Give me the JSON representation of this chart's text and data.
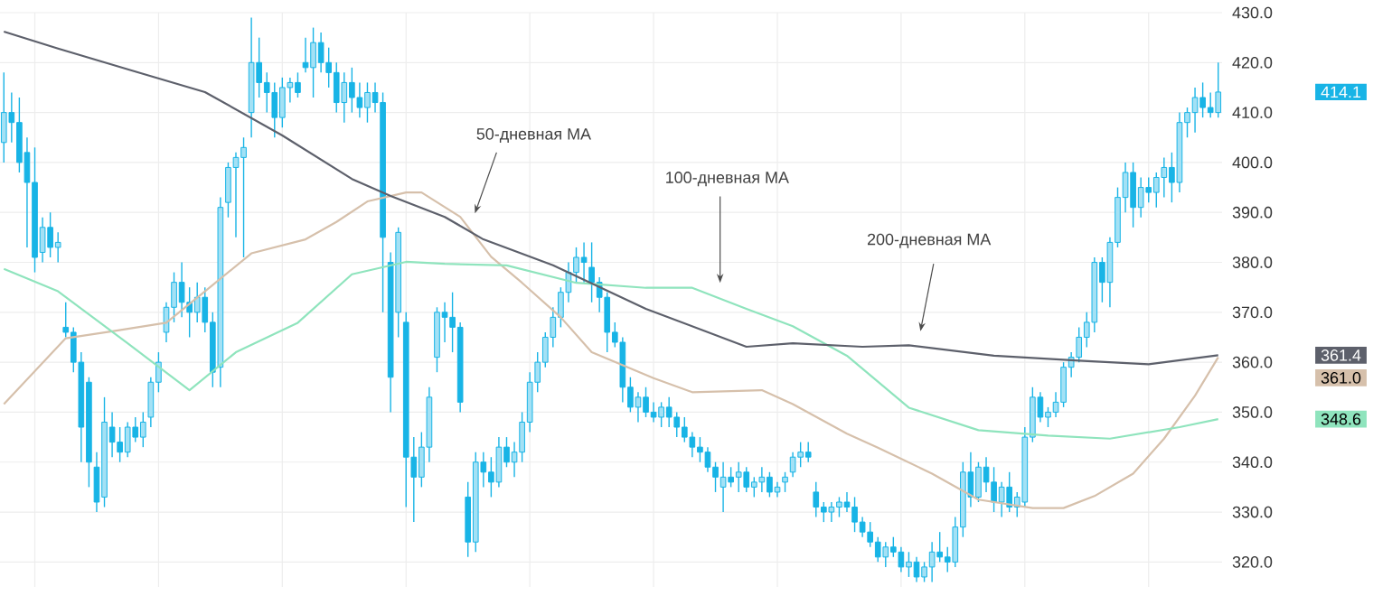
{
  "chart_data": {
    "type": "candlestick",
    "color": "#18b4e6",
    "categories": [
      null,
      null,
      null,
      null,
      null,
      null,
      null,
      null,
      null,
      null,
      null,
      null,
      null,
      null,
      null,
      null,
      null,
      null,
      null,
      null,
      null,
      null,
      null,
      null,
      null,
      null,
      null,
      null,
      null,
      null,
      null,
      null,
      null,
      null,
      null,
      null,
      null,
      null,
      null,
      null,
      null,
      null,
      null,
      null,
      null,
      null,
      null,
      null,
      null,
      null,
      null,
      null,
      null,
      null,
      null,
      null,
      null,
      null,
      null,
      null,
      null,
      null,
      null,
      null,
      null,
      null,
      null,
      null,
      null,
      null,
      null,
      null,
      null,
      null,
      null,
      null,
      null,
      null,
      null,
      null,
      null,
      null,
      null,
      null,
      null,
      null,
      null,
      null,
      null,
      null,
      null,
      null,
      null,
      null,
      null,
      null,
      null,
      null,
      null,
      null,
      null,
      null,
      null,
      null,
      null,
      null,
      null,
      null,
      null,
      null,
      null,
      null,
      null,
      null,
      null,
      null,
      null,
      null,
      null,
      null,
      null,
      null,
      null,
      null,
      null,
      null,
      null,
      null,
      null,
      null,
      null,
      null,
      null,
      null,
      null,
      null,
      null,
      null,
      null,
      null,
      null,
      null,
      null,
      null,
      null,
      null,
      null,
      null,
      null,
      null,
      null,
      null,
      null,
      null,
      null,
      null,
      null,
      null
    ],
    "ohlc": [
      [
        404,
        418,
        400,
        410
      ],
      [
        410,
        414,
        404,
        408
      ],
      [
        408,
        413,
        398,
        400
      ],
      [
        402,
        405,
        383,
        396
      ],
      [
        396,
        403,
        378,
        381
      ],
      [
        382,
        389,
        380,
        387
      ],
      [
        387,
        390,
        381,
        383
      ],
      [
        383,
        386,
        380,
        384
      ],
      [
        367,
        372,
        365,
        366
      ],
      [
        366,
        367,
        358,
        360
      ],
      [
        360,
        362,
        340,
        347
      ],
      [
        356,
        357,
        335,
        340
      ],
      [
        339,
        342,
        330,
        332
      ],
      [
        333,
        353,
        331,
        348
      ],
      [
        347,
        350,
        341,
        344
      ],
      [
        344,
        347,
        340,
        342
      ],
      [
        342,
        348,
        341,
        347
      ],
      [
        347,
        349,
        344,
        345
      ],
      [
        345,
        350,
        343,
        348
      ],
      [
        349,
        357,
        347,
        356
      ],
      [
        356,
        362,
        354,
        360
      ],
      [
        366,
        372,
        364,
        371
      ],
      [
        371,
        378,
        368,
        376
      ],
      [
        376,
        380,
        369,
        372
      ],
      [
        372,
        375,
        365,
        370
      ],
      [
        370,
        376,
        368,
        373
      ],
      [
        373,
        375,
        366,
        368
      ],
      [
        368,
        370,
        355,
        358
      ],
      [
        359,
        393,
        355,
        391
      ],
      [
        392,
        400,
        389,
        399
      ],
      [
        399,
        402,
        385,
        401
      ],
      [
        401,
        405,
        381,
        403
      ],
      [
        410,
        429,
        405,
        420
      ],
      [
        420,
        425,
        413,
        416
      ],
      [
        416,
        418,
        410,
        414
      ],
      [
        414,
        416,
        405,
        409
      ],
      [
        409,
        417,
        407,
        415
      ],
      [
        415,
        417,
        412,
        416
      ],
      [
        416,
        418,
        413,
        414
      ],
      [
        420,
        425,
        418,
        419
      ],
      [
        419,
        427,
        413,
        424
      ],
      [
        424,
        426,
        418,
        420
      ],
      [
        420,
        423,
        415,
        418
      ],
      [
        418,
        420,
        410,
        412
      ],
      [
        412,
        418,
        408,
        416
      ],
      [
        416,
        419,
        410,
        413
      ],
      [
        413,
        416,
        409,
        411
      ],
      [
        411,
        416,
        408,
        414
      ],
      [
        414,
        416,
        410,
        412
      ],
      [
        412,
        414,
        370,
        385
      ],
      [
        380,
        382,
        350,
        357
      ],
      [
        370,
        387,
        365,
        386
      ],
      [
        368,
        370,
        331,
        341
      ],
      [
        341,
        345,
        328,
        337
      ],
      [
        337,
        346,
        335,
        343
      ],
      [
        343,
        355,
        340,
        353
      ],
      [
        361,
        371,
        358,
        370
      ],
      [
        370,
        372,
        364,
        369
      ],
      [
        369,
        374,
        362,
        367
      ],
      [
        367,
        368,
        350,
        352
      ],
      [
        333,
        336,
        321,
        324
      ],
      [
        324,
        342,
        322,
        340
      ],
      [
        340,
        342,
        335,
        338
      ],
      [
        338,
        341,
        333,
        336
      ],
      [
        336,
        345,
        335,
        343
      ],
      [
        343,
        345,
        339,
        340
      ],
      [
        340,
        344,
        337,
        342
      ],
      [
        342,
        350,
        340,
        348
      ],
      [
        348,
        358,
        346,
        356
      ],
      [
        356,
        362,
        354,
        360
      ],
      [
        360,
        366,
        359,
        365
      ],
      [
        365,
        371,
        363,
        369
      ],
      [
        369,
        375,
        367,
        374
      ],
      [
        374,
        380,
        372,
        378
      ],
      [
        378,
        383,
        376,
        381
      ],
      [
        381,
        384,
        376,
        380
      ],
      [
        379,
        384,
        372,
        376
      ],
      [
        376,
        377,
        370,
        373
      ],
      [
        373,
        374,
        362,
        366
      ],
      [
        366,
        368,
        363,
        364
      ],
      [
        364,
        365,
        352,
        355
      ],
      [
        355,
        357,
        350,
        351
      ],
      [
        351,
        354,
        348,
        353
      ],
      [
        353,
        355,
        349,
        350
      ],
      [
        350,
        352,
        348,
        349
      ],
      [
        349,
        352,
        347,
        351
      ],
      [
        351,
        353,
        347,
        349
      ],
      [
        349,
        350,
        345,
        347
      ],
      [
        347,
        349,
        344,
        345
      ],
      [
        345,
        346,
        341,
        343
      ],
      [
        343,
        345,
        340,
        342
      ],
      [
        342,
        343,
        338,
        339
      ],
      [
        339,
        340,
        334,
        337
      ],
      [
        335,
        340,
        330,
        337
      ],
      [
        337,
        339,
        335,
        336
      ],
      [
        337,
        340,
        334,
        338
      ],
      [
        338,
        339,
        334,
        335
      ],
      [
        335,
        337,
        333,
        336
      ],
      [
        336,
        339,
        334,
        337
      ],
      [
        337,
        338,
        333,
        334
      ],
      [
        334,
        336,
        333,
        335
      ],
      [
        336,
        338,
        334,
        337
      ],
      [
        338,
        342,
        337,
        341
      ],
      [
        341,
        344,
        339,
        342
      ],
      [
        342,
        344,
        340,
        341
      ],
      [
        334,
        336,
        329,
        331
      ],
      [
        331,
        332,
        328,
        330
      ],
      [
        330,
        332,
        328,
        331
      ],
      [
        331,
        333,
        329,
        332
      ],
      [
        332,
        334,
        330,
        331
      ],
      [
        331,
        333,
        326,
        328
      ],
      [
        328,
        329,
        325,
        326
      ],
      [
        326,
        328,
        323,
        324
      ],
      [
        324,
        325,
        320,
        321
      ],
      [
        321,
        324,
        319,
        323
      ],
      [
        323,
        325,
        321,
        322
      ],
      [
        322,
        323,
        318,
        319
      ],
      [
        319,
        322,
        317,
        320
      ],
      [
        320,
        321,
        316,
        317
      ],
      [
        317,
        320,
        316,
        319
      ],
      [
        319,
        324,
        316,
        322
      ],
      [
        322,
        326,
        320,
        321
      ],
      [
        321,
        323,
        318,
        320
      ],
      [
        320,
        329,
        319,
        327
      ],
      [
        327,
        340,
        325,
        338
      ],
      [
        338,
        342,
        331,
        333
      ],
      [
        333,
        340,
        332,
        339
      ],
      [
        339,
        341,
        334,
        336
      ],
      [
        336,
        339,
        330,
        332
      ],
      [
        332,
        336,
        329,
        335
      ],
      [
        335,
        338,
        330,
        331
      ],
      [
        331,
        334,
        329,
        333
      ],
      [
        332,
        347,
        331,
        345
      ],
      [
        345,
        355,
        344,
        353
      ],
      [
        353,
        354,
        348,
        349
      ],
      [
        349,
        351,
        347,
        350
      ],
      [
        350,
        354,
        349,
        352
      ],
      [
        352,
        360,
        351,
        359
      ],
      [
        359,
        362,
        357,
        361
      ],
      [
        361,
        367,
        360,
        365
      ],
      [
        365,
        370,
        363,
        368
      ],
      [
        368,
        381,
        366,
        380
      ],
      [
        380,
        381,
        372,
        376
      ],
      [
        376,
        385,
        371,
        384
      ],
      [
        384,
        395,
        383,
        393
      ],
      [
        393,
        400,
        390,
        398
      ],
      [
        398,
        400,
        387,
        391
      ],
      [
        391,
        397,
        389,
        395
      ],
      [
        395,
        397,
        392,
        394
      ],
      [
        394,
        398,
        391,
        397
      ],
      [
        397,
        401,
        393,
        399
      ],
      [
        399,
        402,
        392,
        396
      ],
      [
        396,
        410,
        394,
        408
      ],
      [
        408,
        411,
        405,
        410
      ],
      [
        410,
        415,
        406,
        413
      ],
      [
        413,
        416,
        409,
        411
      ],
      [
        411,
        414,
        409,
        410
      ],
      [
        410,
        420,
        409,
        414.1
      ]
    ],
    "series": [
      {
        "type": "line",
        "color": "#d6c0ab",
        "values": [
          351.6,
          null,
          null,
          null,
          null,
          null,
          null,
          null,
          364.8,
          null,
          null,
          null,
          null,
          null,
          366.2,
          null,
          null,
          null,
          null,
          null,
          null,
          367.9,
          null,
          null,
          null,
          null,
          374.2,
          null,
          null,
          null,
          null,
          null,
          381.8,
          null,
          null,
          null,
          null,
          null,
          null,
          384.6,
          null,
          null,
          null,
          388.1,
          null,
          null,
          null,
          392.2,
          null,
          null,
          null,
          null,
          394,
          null,
          394,
          null,
          null,
          null,
          null,
          389.1,
          null,
          null,
          null,
          381.1,
          null,
          null,
          null,
          375.9,
          null,
          null,
          null,
          null,
          369,
          null,
          null,
          null,
          362,
          null,
          null,
          null,
          null,
          null,
          null,
          null,
          356.8,
          null,
          null,
          null,
          null,
          354,
          null,
          null,
          null,
          null,
          null,
          null,
          null,
          null,
          354.4,
          null,
          null,
          null,
          351.6,
          null,
          null,
          null,
          null,
          null,
          null,
          345.7,
          null,
          null,
          null,
          342.9,
          null,
          null,
          null,
          null,
          null,
          null,
          337.7,
          null,
          null,
          null,
          null,
          null,
          332.5,
          null,
          null,
          null,
          null,
          null,
          null,
          330.8,
          null,
          null,
          null,
          330.8,
          null,
          null,
          null,
          333.2,
          null,
          null,
          null,
          null,
          337.7,
          null,
          null,
          null,
          344.7,
          null,
          null,
          null,
          353.3,
          null,
          null,
          361.0
        ]
      },
      {
        "type": "line",
        "color": "#8fe4bd",
        "values": [
          378.7,
          null,
          null,
          null,
          null,
          null,
          null,
          374.2,
          null,
          null,
          null,
          null,
          null,
          null,
          null,
          null,
          363.8,
          null,
          null,
          null,
          null,
          null,
          null,
          null,
          354.4,
          null,
          null,
          null,
          null,
          null,
          362,
          null,
          null,
          null,
          null,
          null,
          null,
          null,
          367.9,
          null,
          null,
          null,
          null,
          null,
          null,
          377.6,
          null,
          null,
          null,
          null,
          null,
          null,
          380.1,
          null,
          null,
          null,
          null,
          379.7,
          null,
          null,
          null,
          null,
          null,
          null,
          null,
          379.4,
          null,
          null,
          null,
          null,
          null,
          null,
          null,
          null,
          375.9,
          null,
          null,
          null,
          null,
          null,
          null,
          null,
          null,
          374.9,
          null,
          null,
          null,
          null,
          null,
          374.9,
          null,
          null,
          null,
          null,
          null,
          null,
          370.7,
          null,
          null,
          null,
          null,
          null,
          367.2,
          null,
          null,
          null,
          null,
          null,
          null,
          361.3,
          null,
          null,
          null,
          null,
          null,
          null,
          null,
          350.9,
          null,
          null,
          null,
          null,
          null,
          null,
          null,
          null,
          346.4,
          null,
          null,
          null,
          null,
          null,
          null,
          null,
          null,
          345.3,
          null,
          null,
          null,
          null,
          null,
          null,
          null,
          344.7,
          null,
          null,
          null,
          null,
          null,
          null,
          null,
          null,
          347,
          null,
          null,
          null,
          null,
          348.6
        ]
      },
      {
        "type": "line",
        "color": "#5d606b",
        "values": [
          426.2,
          null,
          null,
          null,
          null,
          null,
          null,
          422.8,
          null,
          null,
          null,
          null,
          null,
          null,
          null,
          null,
          null,
          418.2,
          null,
          null,
          null,
          null,
          null,
          null,
          null,
          null,
          414.1,
          null,
          null,
          null,
          null,
          null,
          null,
          null,
          null,
          null,
          405.4,
          null,
          null,
          null,
          null,
          null,
          null,
          null,
          null,
          396.7,
          null,
          null,
          null,
          null,
          393.3,
          null,
          null,
          null,
          null,
          null,
          null,
          389.1,
          null,
          null,
          null,
          null,
          384.6,
          null,
          null,
          null,
          null,
          null,
          null,
          null,
          null,
          379.4,
          null,
          null,
          null,
          null,
          null,
          null,
          null,
          null,
          null,
          null,
          null,
          370.7,
          null,
          null,
          null,
          null,
          null,
          null,
          null,
          null,
          null,
          null,
          null,
          null,
          363.1,
          null,
          null,
          null,
          null,
          null,
          363.8,
          null,
          null,
          null,
          null,
          null,
          null,
          null,
          null,
          363.1,
          null,
          null,
          null,
          null,
          null,
          363.4,
          null,
          null,
          null,
          null,
          null,
          null,
          null,
          null,
          null,
          null,
          361.3,
          null,
          null,
          null,
          null,
          null,
          null,
          null,
          null,
          null,
          null,
          360.3,
          null,
          null,
          null,
          null,
          null,
          null,
          null,
          null,
          359.6,
          null,
          null,
          null,
          null,
          null,
          null,
          null,
          null,
          361.4
        ]
      }
    ],
    "annotations": [
      "50-дневная MA",
      "100-дневная MA",
      "200-дневная MA",
      "414.1",
      "361.4",
      "361.0",
      "348.6"
    ],
    "ylim": [
      315,
      430
    ],
    "yticks": [
      {
        "value": 320,
        "label": "320.0"
      },
      {
        "value": 330,
        "label": "330.0"
      },
      {
        "value": 340,
        "label": "340.0"
      },
      {
        "value": 350,
        "label": "350.0"
      },
      {
        "value": 360,
        "label": "360.0"
      },
      {
        "value": 370,
        "label": "370.0"
      },
      {
        "value": 380,
        "label": "380.0"
      },
      {
        "value": 390,
        "label": "390.0"
      },
      {
        "value": 400,
        "label": "400.0"
      },
      {
        "value": 410,
        "label": "410.0"
      },
      {
        "value": 420,
        "label": "420.0"
      },
      {
        "value": 430,
        "label": "430.0"
      }
    ],
    "grid": true,
    "marker": "none"
  }
}
